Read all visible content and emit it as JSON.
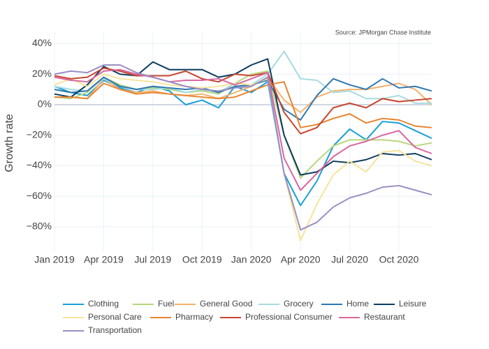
{
  "chart_data": {
    "type": "line",
    "annotation": "Source: JPMorgan Chase Institute",
    "y_label": "Growth rate",
    "x": [
      "2019-01",
      "2019-02",
      "2019-03",
      "2019-04",
      "2019-05",
      "2019-06",
      "2019-07",
      "2019-08",
      "2019-09",
      "2019-10",
      "2019-11",
      "2019-12",
      "2020-01",
      "2020-02",
      "2020-03",
      "2020-04",
      "2020-05",
      "2020-06",
      "2020-07",
      "2020-08",
      "2020-09",
      "2020-10",
      "2020-11",
      "2020-12"
    ],
    "xlim": [
      "2019-01",
      "2020-12"
    ],
    "xticks": [
      {
        "value": "2019-01",
        "label": "Jan 2019"
      },
      {
        "value": "2019-04",
        "label": "Apr 2019"
      },
      {
        "value": "2019-07",
        "label": "Jul 2019"
      },
      {
        "value": "2019-10",
        "label": "Oct 2019"
      },
      {
        "value": "2020-01",
        "label": "Jan 2020"
      },
      {
        "value": "2020-04",
        "label": "Apr 2020"
      },
      {
        "value": "2020-07",
        "label": "Jul 2020"
      },
      {
        "value": "2020-10",
        "label": "Oct 2020"
      }
    ],
    "ylim": [
      -96,
      48
    ],
    "yticks": [
      {
        "value": 40,
        "label": "40%"
      },
      {
        "value": 20,
        "label": "20%"
      },
      {
        "value": 0,
        "label": "0%"
      },
      {
        "value": -20,
        "label": "−20%"
      },
      {
        "value": -40,
        "label": "−40%"
      },
      {
        "value": -60,
        "label": "−60%"
      },
      {
        "value": -80,
        "label": "−80%"
      }
    ],
    "grid": true,
    "legend": "bottom",
    "series": [
      {
        "name": "Clothing",
        "color": "#1a9fd6",
        "values": [
          12,
          8,
          6,
          16,
          11,
          8,
          12,
          9,
          0,
          3,
          -2,
          12,
          8,
          15,
          -45,
          -66,
          -50,
          -27,
          -16,
          -23,
          -11,
          -12,
          -17,
          -22
        ]
      },
      {
        "name": "Fuel",
        "color": "#b8d67c",
        "values": [
          5,
          4,
          8,
          18,
          13,
          10,
          11,
          10,
          8,
          9,
          7,
          14,
          20,
          22,
          -20,
          -48,
          -37,
          -27,
          -23,
          -23,
          -23,
          -24,
          -27,
          -25
        ]
      },
      {
        "name": "General Good",
        "color": "#f4b16c",
        "values": [
          5,
          5,
          4,
          17,
          10,
          8,
          9,
          7,
          6,
          7,
          4,
          8,
          12,
          18,
          3,
          -5,
          5,
          9,
          10,
          10,
          12,
          14,
          10,
          0
        ]
      },
      {
        "name": "Grocery",
        "color": "#a7dbe0",
        "values": [
          12,
          10,
          9,
          17,
          12,
          10,
          10,
          11,
          8,
          10,
          8,
          14,
          13,
          20,
          35,
          17,
          16,
          8,
          9,
          4,
          4,
          6,
          1,
          1
        ]
      },
      {
        "name": "Home",
        "color": "#2f78b1",
        "values": [
          10,
          8,
          9,
          18,
          12,
          10,
          12,
          11,
          10,
          11,
          8,
          12,
          13,
          16,
          -3,
          -10,
          6,
          17,
          13,
          10,
          17,
          11,
          12,
          9
        ]
      },
      {
        "name": "Leisure",
        "color": "#0c3c5e",
        "values": [
          7,
          5,
          13,
          25,
          20,
          19,
          28,
          23,
          23,
          23,
          18,
          20,
          26,
          30,
          -20,
          -46,
          -44,
          -37,
          -38,
          -36,
          -32,
          -33,
          -32,
          -36
        ]
      },
      {
        "name": "Personal Care",
        "color": "#f8e39b",
        "values": [
          13,
          17,
          12,
          20,
          17,
          16,
          15,
          13,
          12,
          11,
          12,
          14,
          13,
          17,
          -45,
          -89,
          -65,
          -46,
          -37,
          -44,
          -31,
          -30,
          -37,
          -40
        ]
      },
      {
        "name": "Pharmacy",
        "color": "#e8842f",
        "values": [
          5,
          5,
          4,
          14,
          10,
          7,
          8,
          7,
          6,
          5,
          4,
          5,
          9,
          13,
          15,
          -15,
          -13,
          -9,
          -6,
          -12,
          -9,
          -10,
          -14,
          -15
        ]
      },
      {
        "name": "Professional Consumer",
        "color": "#c6452c",
        "values": [
          19,
          17,
          18,
          24,
          22,
          19,
          19,
          19,
          22,
          17,
          15,
          20,
          19,
          21,
          -5,
          -19,
          -15,
          -2,
          1,
          -2,
          4,
          2,
          3,
          4
        ]
      },
      {
        "name": "Restaurant",
        "color": "#d9679f",
        "values": [
          18,
          16,
          15,
          22,
          23,
          20,
          18,
          15,
          16,
          16,
          17,
          13,
          17,
          21,
          -35,
          -56,
          -45,
          -34,
          -27,
          -24,
          -20,
          -17,
          -28,
          -32
        ]
      },
      {
        "name": "Transportation",
        "color": "#998dc3",
        "values": [
          20,
          22,
          21,
          26,
          26,
          21,
          18,
          15,
          12,
          10,
          9,
          11,
          12,
          18,
          -45,
          -82,
          -77,
          -67,
          -61,
          -58,
          -54,
          -53,
          -56,
          -59
        ]
      }
    ]
  }
}
